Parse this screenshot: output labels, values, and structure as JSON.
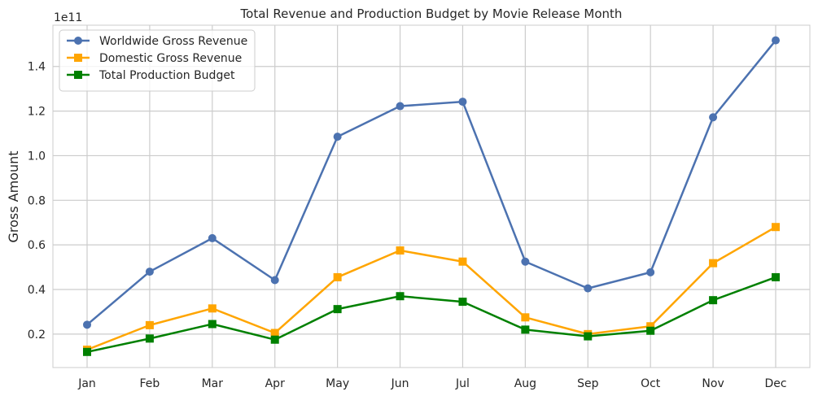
{
  "chart_data": {
    "type": "line",
    "title": "Total Revenue and Production Budget by Movie Release Month",
    "xlabel": "",
    "ylabel": "Gross Amount",
    "y_offset_text": "1e11",
    "categories": [
      "Jan",
      "Feb",
      "Mar",
      "Apr",
      "May",
      "Jun",
      "Jul",
      "Aug",
      "Sep",
      "Oct",
      "Nov",
      "Dec"
    ],
    "ylim": [
      0.05,
      1.585
    ],
    "yticks": [
      0.2,
      0.4,
      0.6,
      0.8,
      1.0,
      1.2,
      1.4
    ],
    "ytick_labels": [
      "0.2",
      "0.4",
      "0.6",
      "0.8",
      "1.0",
      "1.2",
      "1.4"
    ],
    "grid": true,
    "legend_position": "top-left",
    "series": [
      {
        "name": "Worldwide Gross Revenue",
        "color": "#4c72b0",
        "marker": "circle",
        "values": [
          0.242,
          0.48,
          0.63,
          0.442,
          1.085,
          1.222,
          1.242,
          0.525,
          0.405,
          0.477,
          1.172,
          1.517
        ]
      },
      {
        "name": "Domestic Gross Revenue",
        "color": "#ffa500",
        "marker": "square",
        "values": [
          0.13,
          0.24,
          0.315,
          0.205,
          0.455,
          0.575,
          0.525,
          0.275,
          0.2,
          0.235,
          0.518,
          0.68
        ]
      },
      {
        "name": "Total Production Budget",
        "color": "#008000",
        "marker": "square",
        "values": [
          0.12,
          0.18,
          0.245,
          0.175,
          0.312,
          0.37,
          0.345,
          0.22,
          0.19,
          0.215,
          0.352,
          0.455
        ]
      }
    ]
  }
}
